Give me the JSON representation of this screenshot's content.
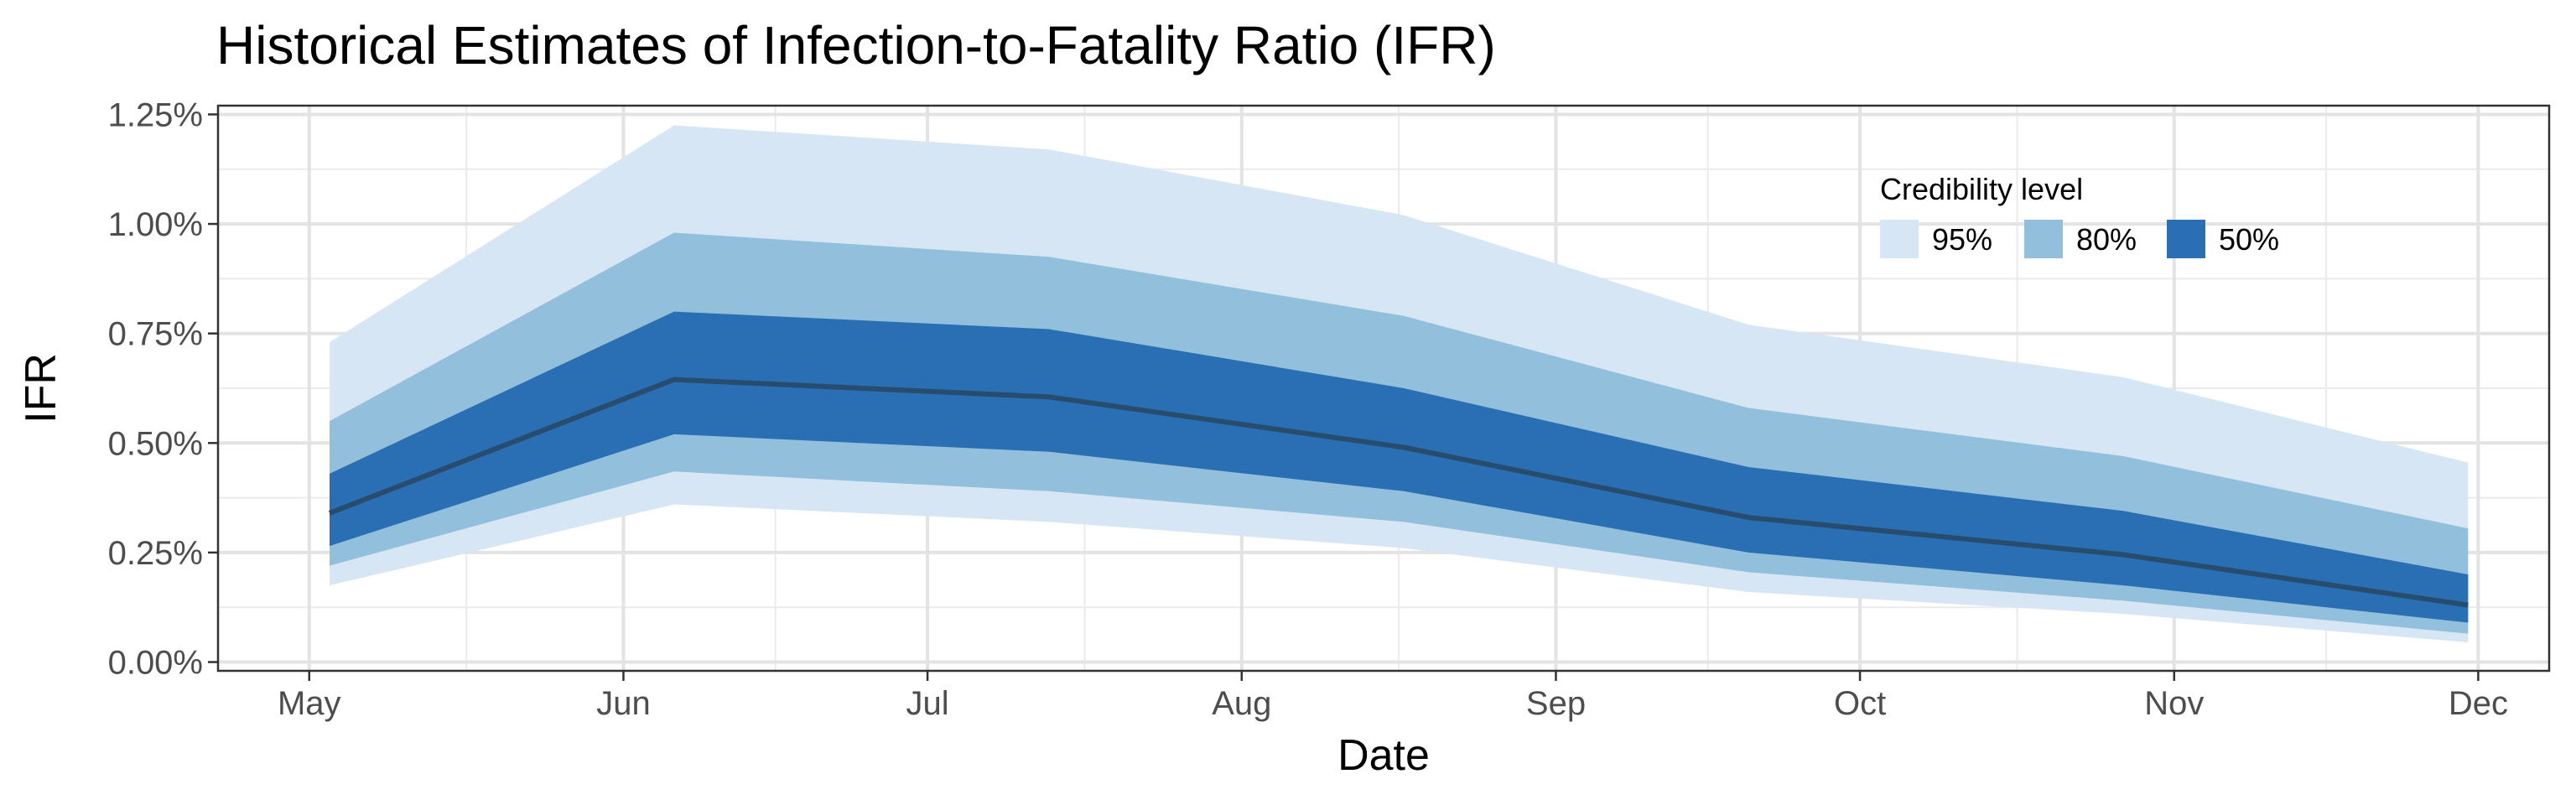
{
  "chart_data": {
    "type": "area",
    "title": "Historical Estimates of Infection-to-Fatality Ratio (IFR)",
    "xlabel": "Date",
    "ylabel": "IFR",
    "x_ticks": [
      {
        "label": "May",
        "date": "2020-05-01"
      },
      {
        "label": "Jun",
        "date": "2020-06-01"
      },
      {
        "label": "Jul",
        "date": "2020-07-01"
      },
      {
        "label": "Aug",
        "date": "2020-08-01"
      },
      {
        "label": "Sep",
        "date": "2020-09-01"
      },
      {
        "label": "Oct",
        "date": "2020-10-01"
      },
      {
        "label": "Nov",
        "date": "2020-11-01"
      },
      {
        "label": "Dec",
        "date": "2020-12-01"
      }
    ],
    "y_ticks": [
      {
        "label": "0.00%",
        "value": 0
      },
      {
        "label": "0.25%",
        "value": 0.25
      },
      {
        "label": "0.50%",
        "value": 0.5
      },
      {
        "label": "0.75%",
        "value": 0.75
      },
      {
        "label": "1.00%",
        "value": 1.0
      },
      {
        "label": "1.25%",
        "value": 1.25
      }
    ],
    "xlim": [
      "2020-04-22",
      "2020-12-08"
    ],
    "ylim": [
      -0.02,
      1.27
    ],
    "grid": true,
    "x": [
      "2020-05-03",
      "2020-06-06",
      "2020-07-13",
      "2020-08-17",
      "2020-09-20",
      "2020-10-27",
      "2020-11-30"
    ],
    "median": [
      0.34,
      0.645,
      0.605,
      0.49,
      0.33,
      0.245,
      0.13
    ],
    "bands": [
      {
        "name": "95%",
        "color": "#d6e6f4",
        "lower": [
          0.175,
          0.36,
          0.32,
          0.26,
          0.16,
          0.11,
          0.045
        ],
        "upper": [
          0.73,
          1.225,
          1.17,
          1.02,
          0.77,
          0.65,
          0.455
        ]
      },
      {
        "name": "80%",
        "color": "#92bfdb",
        "lower": [
          0.22,
          0.435,
          0.39,
          0.32,
          0.205,
          0.14,
          0.065
        ],
        "upper": [
          0.55,
          0.98,
          0.925,
          0.79,
          0.58,
          0.47,
          0.305
        ]
      },
      {
        "name": "50%",
        "color": "#2a6fb3",
        "lower": [
          0.265,
          0.52,
          0.48,
          0.39,
          0.25,
          0.175,
          0.09
        ],
        "upper": [
          0.43,
          0.8,
          0.76,
          0.625,
          0.445,
          0.345,
          0.2
        ]
      }
    ],
    "median_color": "#274c6d",
    "legend": {
      "title": "Credibility level",
      "placement": "top-right",
      "items": [
        "95%",
        "80%",
        "50%"
      ]
    }
  }
}
